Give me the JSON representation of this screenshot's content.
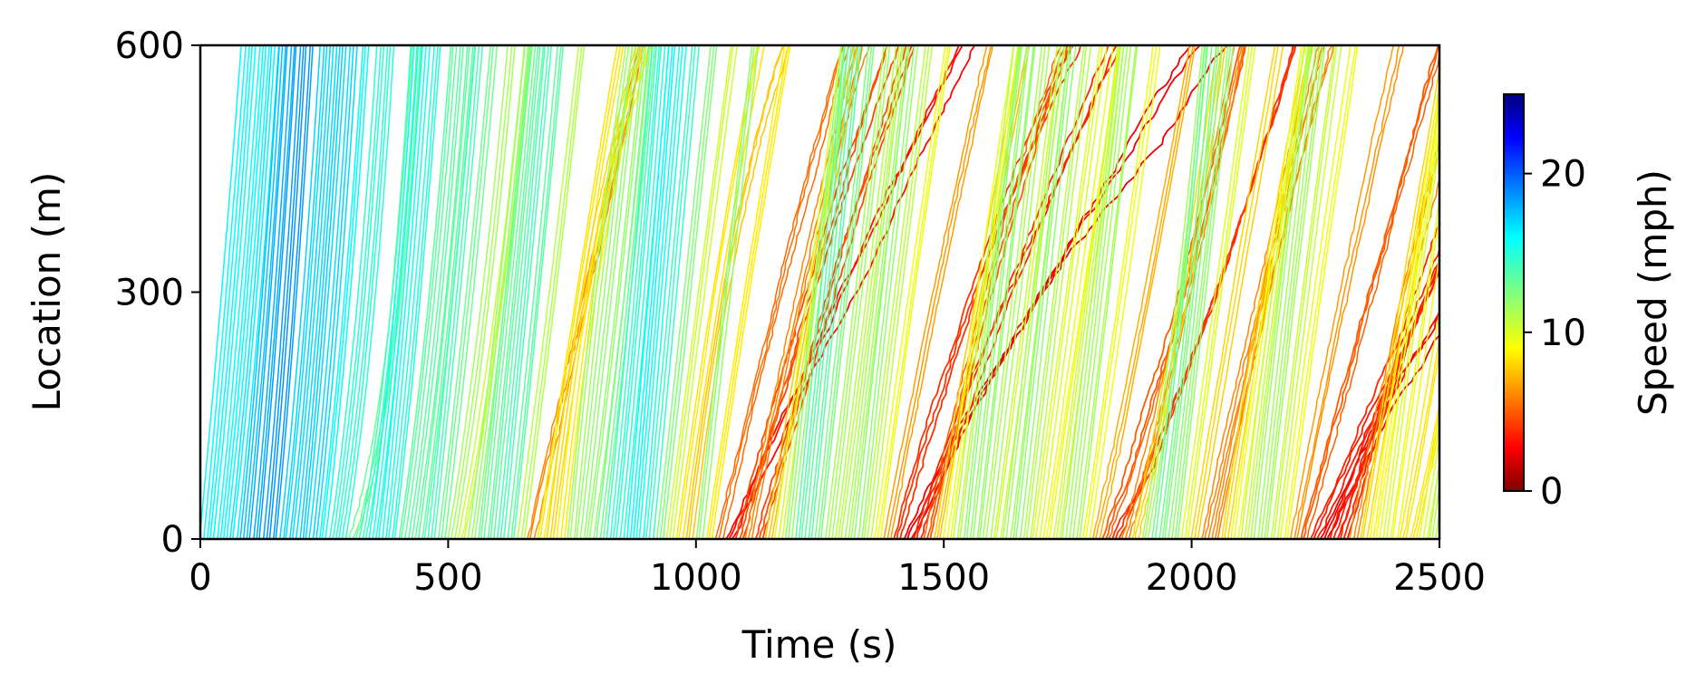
{
  "chart_data": {
    "type": "scatter",
    "title": "",
    "xlabel": "Time (s)",
    "ylabel": "Location (m)",
    "xlim": [
      0,
      2500
    ],
    "ylim": [
      0,
      600
    ],
    "xticks": [
      0,
      500,
      1000,
      1500,
      2000,
      2500
    ],
    "yticks": [
      0,
      300,
      600
    ],
    "grid": false,
    "colorbar": {
      "label": "Speed (mph)",
      "range": [
        0,
        25
      ],
      "ticks": [
        0,
        10,
        20
      ],
      "colormap": "jet_r"
    },
    "trajectory_speed_mph": {
      "columns": [
        "t_start_s",
        "speed_bottom_mph",
        "speed_top_mph"
      ],
      "rows": [
        [
          0,
          14,
          18
        ],
        [
          20,
          13,
          19
        ],
        [
          40,
          12,
          20
        ],
        [
          60,
          12,
          21
        ],
        [
          80,
          13,
          22
        ],
        [
          100,
          14,
          22
        ],
        [
          120,
          14,
          23
        ],
        [
          140,
          14,
          23
        ],
        [
          160,
          12,
          22
        ],
        [
          180,
          12,
          22
        ],
        [
          200,
          13,
          21
        ],
        [
          220,
          12,
          22
        ],
        [
          240,
          11,
          21
        ],
        [
          260,
          9,
          21
        ],
        [
          280,
          8,
          22
        ],
        [
          300,
          4,
          22
        ],
        [
          320,
          7,
          22
        ],
        [
          340,
          10,
          21
        ],
        [
          360,
          12,
          19
        ],
        [
          380,
          11,
          19
        ],
        [
          400,
          9,
          18
        ],
        [
          420,
          9,
          18
        ],
        [
          440,
          10,
          17
        ],
        [
          460,
          12,
          16
        ],
        [
          480,
          11,
          15
        ],
        [
          500,
          8,
          15
        ],
        [
          520,
          7,
          14
        ],
        [
          540,
          10,
          14
        ],
        [
          560,
          12,
          14
        ],
        [
          580,
          13,
          14
        ],
        [
          600,
          13,
          15
        ],
        [
          620,
          12,
          15
        ],
        [
          640,
          10,
          12
        ],
        [
          660,
          6,
          6
        ],
        [
          680,
          9,
          8
        ],
        [
          700,
          11,
          5
        ],
        [
          720,
          13,
          4
        ],
        [
          740,
          14,
          9
        ],
        [
          760,
          12,
          12
        ],
        [
          780,
          10,
          14
        ],
        [
          800,
          11,
          15
        ],
        [
          820,
          13,
          16
        ],
        [
          840,
          13,
          17
        ],
        [
          860,
          15,
          17
        ],
        [
          880,
          15,
          16
        ],
        [
          900,
          14,
          15
        ],
        [
          920,
          12,
          13
        ],
        [
          940,
          11,
          10
        ],
        [
          960,
          10,
          7
        ],
        [
          980,
          11,
          4
        ],
        [
          1000,
          12,
          12
        ],
        [
          1020,
          9,
          8
        ],
        [
          1040,
          6,
          5
        ],
        [
          1060,
          3,
          3
        ],
        [
          1080,
          5,
          4
        ],
        [
          1100,
          7,
          5
        ],
        [
          1120,
          5,
          4
        ],
        [
          1140,
          8,
          7
        ],
        [
          1160,
          10,
          10
        ],
        [
          1180,
          12,
          12
        ],
        [
          1200,
          13,
          14
        ],
        [
          1220,
          13,
          14
        ],
        [
          1240,
          12,
          13
        ],
        [
          1260,
          11,
          12
        ],
        [
          1280,
          10,
          12
        ],
        [
          1300,
          11,
          12
        ],
        [
          1320,
          12,
          12
        ],
        [
          1340,
          11,
          11
        ],
        [
          1360,
          10,
          9
        ],
        [
          1380,
          7,
          6
        ],
        [
          1400,
          5,
          3
        ],
        [
          1420,
          3,
          2
        ],
        [
          1440,
          4,
          3
        ],
        [
          1460,
          6,
          4
        ],
        [
          1480,
          8,
          7
        ],
        [
          1500,
          10,
          9
        ],
        [
          1520,
          11,
          11
        ],
        [
          1540,
          12,
          12
        ],
        [
          1560,
          12,
          12
        ],
        [
          1580,
          11,
          12
        ],
        [
          1600,
          10,
          11
        ],
        [
          1620,
          11,
          12
        ],
        [
          1640,
          12,
          12
        ],
        [
          1660,
          11,
          11
        ],
        [
          1680,
          10,
          10
        ],
        [
          1700,
          9,
          10
        ],
        [
          1720,
          10,
          11
        ],
        [
          1740,
          11,
          12
        ],
        [
          1760,
          11,
          12
        ],
        [
          1780,
          9,
          10
        ],
        [
          1800,
          6,
          8
        ],
        [
          1820,
          4,
          6
        ],
        [
          1840,
          3,
          5
        ],
        [
          1860,
          5,
          7
        ],
        [
          1880,
          6,
          10
        ],
        [
          1900,
          8,
          15
        ],
        [
          1920,
          10,
          16
        ],
        [
          1940,
          11,
          14
        ],
        [
          1960,
          12,
          12
        ],
        [
          1980,
          10,
          10
        ],
        [
          2000,
          8,
          8
        ],
        [
          2020,
          6,
          6
        ],
        [
          2040,
          7,
          5
        ],
        [
          2060,
          9,
          7
        ],
        [
          2080,
          10,
          9
        ],
        [
          2100,
          11,
          10
        ],
        [
          2120,
          12,
          11
        ],
        [
          2140,
          12,
          11
        ],
        [
          2160,
          11,
          10
        ],
        [
          2180,
          10,
          9
        ],
        [
          2200,
          7,
          6
        ],
        [
          2220,
          5,
          5
        ],
        [
          2240,
          3,
          4
        ],
        [
          2260,
          3,
          2
        ],
        [
          2280,
          4,
          3
        ],
        [
          2300,
          5,
          2
        ],
        [
          2320,
          7,
          5
        ],
        [
          2340,
          8,
          8
        ],
        [
          2360,
          9,
          9
        ],
        [
          2380,
          10,
          10
        ],
        [
          2400,
          9,
          10
        ],
        [
          2420,
          7,
          10
        ],
        [
          2440,
          6,
          11
        ],
        [
          2460,
          8,
          12
        ],
        [
          2480,
          10,
          12
        ]
      ]
    }
  }
}
